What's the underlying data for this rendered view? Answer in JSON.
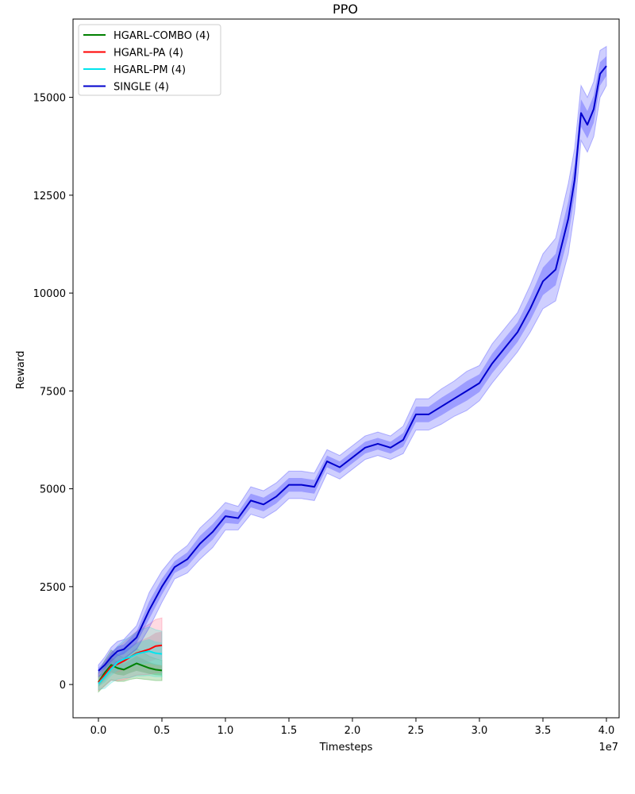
{
  "chart_data": {
    "type": "line",
    "title": "PPO",
    "xlabel": "Timesteps",
    "ylabel": "Reward",
    "x_offset_label": "1e7",
    "xlim": [
      -0.2,
      4.1
    ],
    "ylim": [
      -850,
      17000
    ],
    "x_ticks": [
      0.0,
      0.5,
      1.0,
      1.5,
      2.0,
      2.5,
      3.0,
      3.5,
      4.0
    ],
    "x_tick_labels": [
      "0.0",
      "0.5",
      "1.0",
      "1.5",
      "2.0",
      "2.5",
      "3.0",
      "3.5",
      "4.0"
    ],
    "y_ticks": [
      0,
      2500,
      5000,
      7500,
      10000,
      12500,
      15000
    ],
    "y_tick_labels": [
      "0",
      "2500",
      "5000",
      "7500",
      "10000",
      "12500",
      "15000"
    ],
    "legend_position": "top-left",
    "series": [
      {
        "name": "HGARL-COMBO (4)",
        "color": "#008000",
        "band_color": "#2ca02c",
        "x": [
          0.0,
          0.05,
          0.1,
          0.15,
          0.2,
          0.25,
          0.3,
          0.35,
          0.4,
          0.45,
          0.5
        ],
        "y": [
          60,
          300,
          500,
          420,
          380,
          460,
          540,
          480,
          420,
          380,
          360
        ],
        "band": [
          250,
          320,
          380,
          340,
          300,
          330,
          380,
          340,
          300,
          280,
          260
        ]
      },
      {
        "name": "HGARL-PA (4)",
        "color": "#ff0000",
        "band_color": "#ff6b8b",
        "x": [
          0.0,
          0.05,
          0.1,
          0.15,
          0.2,
          0.25,
          0.3,
          0.35,
          0.4,
          0.45,
          0.5
        ],
        "y": [
          50,
          250,
          450,
          520,
          600,
          700,
          800,
          850,
          900,
          980,
          1000
        ],
        "band": [
          200,
          300,
          350,
          420,
          480,
          520,
          560,
          600,
          640,
          680,
          700
        ]
      },
      {
        "name": "HGARL-PM (4)",
        "color": "#00e5ee",
        "band_color": "#40e0d0",
        "x": [
          0.0,
          0.05,
          0.1,
          0.15,
          0.2,
          0.25,
          0.3,
          0.35,
          0.4,
          0.45,
          0.5
        ],
        "y": [
          20,
          200,
          400,
          560,
          650,
          700,
          780,
          820,
          850,
          800,
          780
        ],
        "band": [
          150,
          300,
          360,
          420,
          480,
          520,
          560,
          600,
          620,
          600,
          580
        ]
      },
      {
        "name": "SINGLE (4)",
        "color": "#0000cd",
        "band_color": "#4040ff",
        "x": [
          0.0,
          0.05,
          0.1,
          0.15,
          0.2,
          0.3,
          0.4,
          0.5,
          0.6,
          0.7,
          0.8,
          0.9,
          1.0,
          1.1,
          1.2,
          1.3,
          1.4,
          1.5,
          1.6,
          1.7,
          1.8,
          1.9,
          2.0,
          2.1,
          2.2,
          2.3,
          2.4,
          2.5,
          2.6,
          2.7,
          2.8,
          2.9,
          3.0,
          3.1,
          3.2,
          3.3,
          3.4,
          3.5,
          3.6,
          3.7,
          3.75,
          3.8,
          3.85,
          3.9,
          3.95,
          4.0
        ],
        "y": [
          350,
          500,
          700,
          850,
          900,
          1200,
          1900,
          2500,
          3000,
          3200,
          3600,
          3900,
          4300,
          4250,
          4700,
          4600,
          4800,
          5100,
          5100,
          5050,
          5700,
          5550,
          5800,
          6050,
          6150,
          6050,
          6250,
          6900,
          6900,
          7100,
          7300,
          7500,
          7700,
          8200,
          8600,
          9000,
          9600,
          10300,
          10600,
          11900,
          12900,
          14600,
          14300,
          14700,
          15600,
          15800
        ],
        "band": [
          150,
          200,
          250,
          250,
          250,
          300,
          450,
          400,
          300,
          350,
          400,
          400,
          350,
          300,
          350,
          350,
          350,
          350,
          350,
          350,
          300,
          300,
          300,
          300,
          300,
          300,
          350,
          400,
          400,
          450,
          450,
          500,
          450,
          500,
          500,
          500,
          600,
          700,
          800,
          900,
          800,
          700,
          700,
          700,
          600,
          500
        ]
      }
    ]
  }
}
